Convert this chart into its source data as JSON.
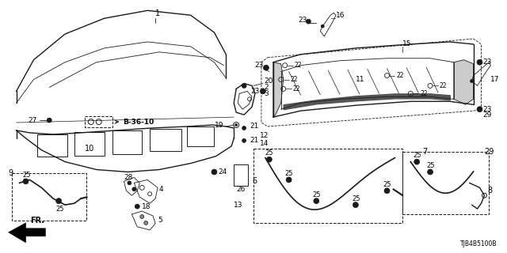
{
  "diagram_id": "TJB4B5100B",
  "bg_color": "#ffffff",
  "line_color": "#1a1a1a",
  "gray_fill": "#888888",
  "dark_fill": "#333333"
}
